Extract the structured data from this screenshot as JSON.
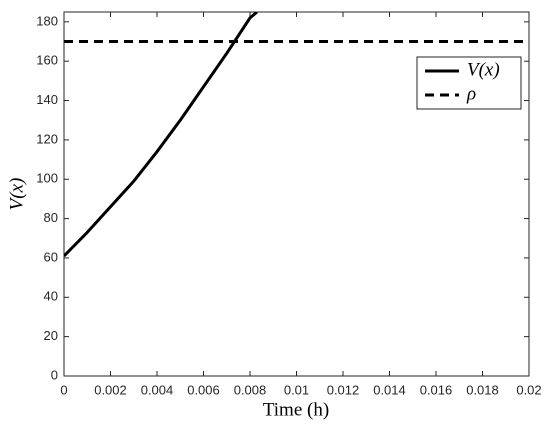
{
  "chart_data": {
    "type": "line",
    "x_label": "Time (h)",
    "y_label": "V(x)",
    "series": [
      {
        "name": "V(x)",
        "color": "#000000",
        "style": "solid",
        "x": [
          0,
          0.001,
          0.002,
          0.003,
          0.004,
          0.005,
          0.006,
          0.007,
          0.008,
          0.0083
        ],
        "values": [
          61,
          73,
          86,
          99,
          114,
          130,
          147,
          164,
          182,
          185
        ]
      },
      {
        "name": "ρ",
        "color": "#000000",
        "style": "dashed",
        "x": [
          0,
          0.02
        ],
        "values": [
          170,
          170
        ]
      }
    ],
    "xlim": [
      0,
      0.02
    ],
    "xticks": [
      0,
      0.002,
      0.004,
      0.006,
      0.008,
      0.01,
      0.012,
      0.014,
      0.016,
      0.018,
      0.02
    ],
    "ylim": [
      0,
      185
    ],
    "yticks": [
      0,
      20,
      40,
      60,
      80,
      100,
      120,
      140,
      160,
      180
    ],
    "legend": "northeast"
  }
}
